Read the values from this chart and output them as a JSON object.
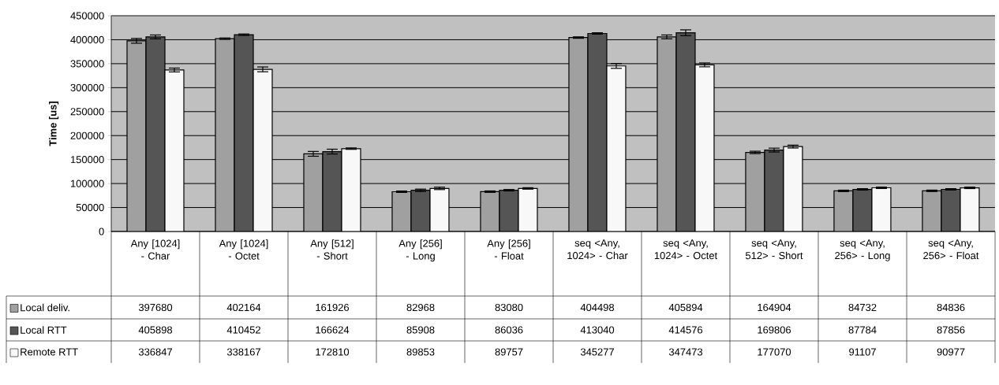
{
  "chart_data": {
    "type": "bar",
    "ylabel": "Time [us]",
    "categories": [
      "Any [1024] - Char",
      "Any [1024] - Octet",
      "Any [512] - Short",
      "Any [256] - Long",
      "Any [256] - Float",
      "seq <Any, 1024> - Char",
      "seq <Any, 1024> - Octet",
      "seq <Any, 512> - Short",
      "seq <Any, 256> - Long",
      "seq <Any, 256> - Float"
    ],
    "series": [
      {
        "name": "Local deliv.",
        "color": "#a0a0a0",
        "values": [
          397680,
          402164,
          161926,
          82968,
          83080,
          404498,
          405894,
          164904,
          84732,
          84836
        ],
        "errors": [
          5000,
          1500,
          5000,
          1500,
          1500,
          1500,
          4000,
          2500,
          1500,
          1500
        ]
      },
      {
        "name": "Local RTT",
        "color": "#555555",
        "values": [
          405898,
          410452,
          166624,
          85908,
          86036,
          413040,
          414576,
          169806,
          87784,
          87856
        ],
        "errors": [
          4000,
          1500,
          5000,
          2500,
          1500,
          1500,
          6000,
          4000,
          1500,
          1500
        ]
      },
      {
        "name": "Remote RTT",
        "color": "#f8f8f8",
        "values": [
          336847,
          338167,
          172810,
          89853,
          89757,
          345277,
          347473,
          177070,
          91107,
          90977
        ],
        "errors": [
          4000,
          5000,
          1500,
          2500,
          1500,
          5000,
          4000,
          3000,
          1500,
          1500
        ]
      }
    ],
    "ylim": [
      0,
      450000
    ],
    "yticks": [
      0,
      50000,
      100000,
      150000,
      200000,
      250000,
      300000,
      350000,
      400000,
      450000
    ],
    "grid": "y",
    "legend": "bottom",
    "data_labels": true
  }
}
